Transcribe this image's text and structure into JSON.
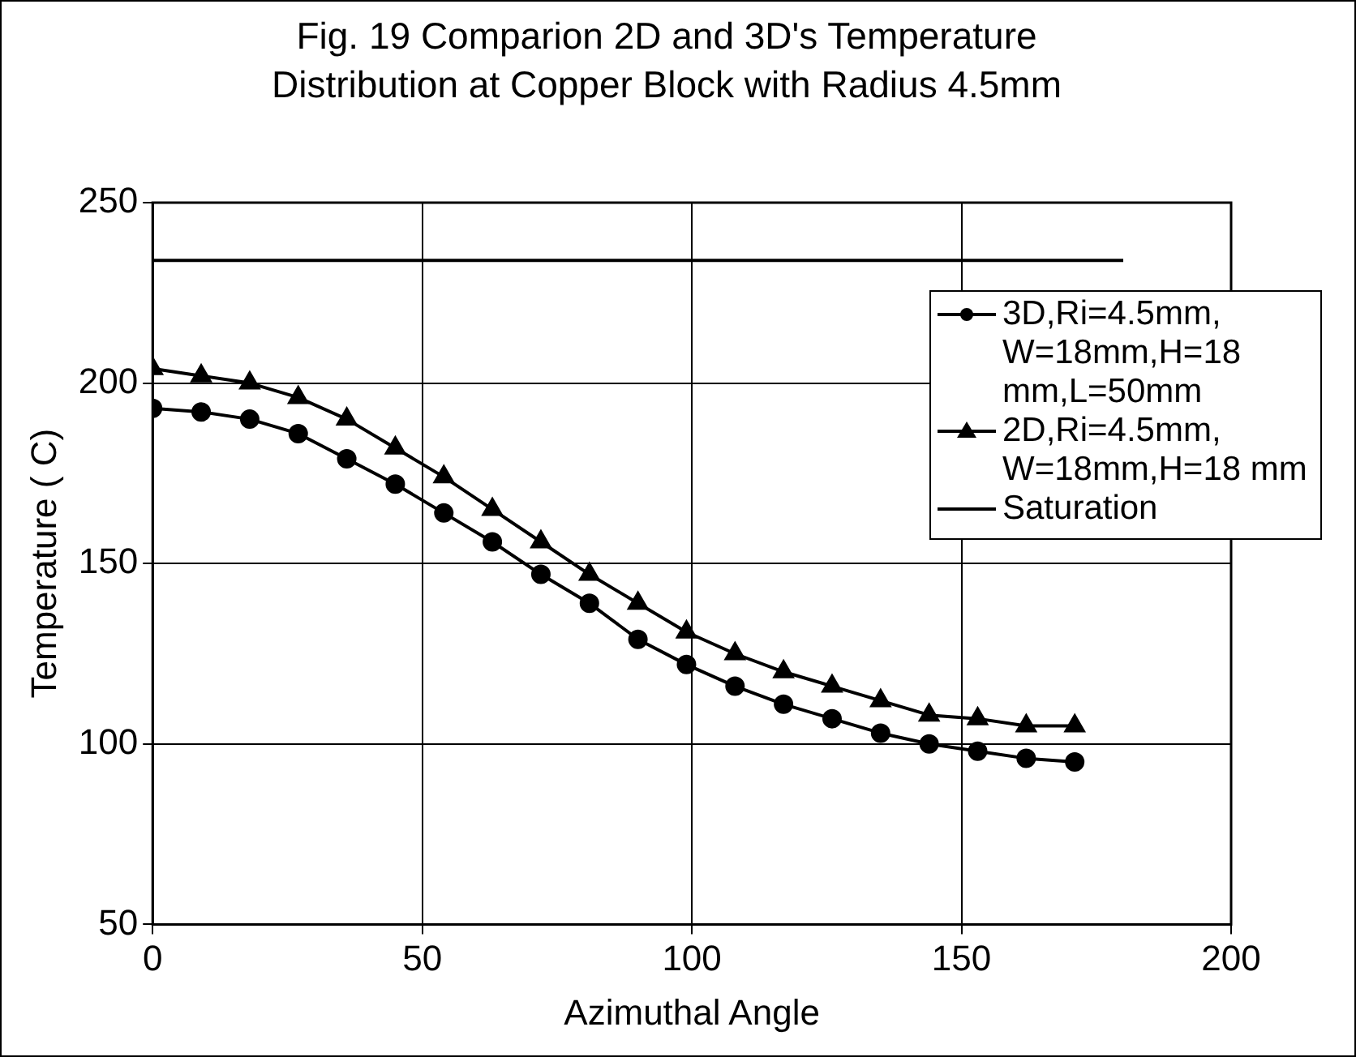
{
  "chart_data": {
    "type": "line",
    "title": "Fig. 19 Comparion 2D and 3D's Temperature Distribution at Copper Block with Radius 4.5mm",
    "xlabel": "Azimuthal Angle",
    "ylabel": "Temperature ( C)",
    "x": [
      0,
      9,
      18,
      27,
      36,
      45,
      54,
      63,
      72,
      81,
      90,
      99,
      108,
      117,
      126,
      135,
      144,
      153,
      162,
      171
    ],
    "series": [
      {
        "name": "3D,Ri=4.5mm, W=18mm,H=18 mm,L=50mm",
        "color": "#000000",
        "marker": "circle",
        "values": [
          193,
          192,
          190,
          186,
          179,
          172,
          164,
          156,
          147,
          139,
          129,
          122,
          116,
          111,
          107,
          103,
          100,
          98,
          96,
          95
        ]
      },
      {
        "name": "2D,Ri=4.5mm, W=18mm,H=18 mm",
        "color": "#000000",
        "marker": "triangle",
        "values": [
          204,
          202,
          200,
          196,
          190,
          182,
          174,
          165,
          156,
          147,
          139,
          131,
          125,
          120,
          116,
          112,
          108,
          107,
          105,
          105
        ]
      },
      {
        "name": "Saturation",
        "color": "#000000",
        "marker": "none",
        "x": [
          0,
          180
        ],
        "values": [
          234,
          234
        ]
      }
    ],
    "xlim": [
      0,
      200
    ],
    "xticks": [
      0,
      50,
      100,
      150,
      200
    ],
    "ylim": [
      50,
      250
    ],
    "yticks": [
      50,
      100,
      150,
      200,
      250
    ],
    "grid": true,
    "legend": "right",
    "line_style": "solid"
  }
}
